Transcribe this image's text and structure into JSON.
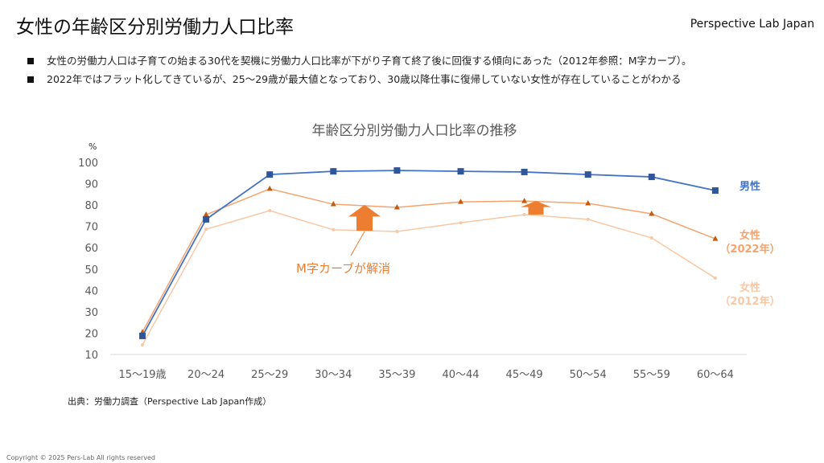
{
  "header": {
    "title": "女性の年齢区分別労働力人口比率",
    "brand": "Perspective Lab Japan"
  },
  "bullets": [
    "女性の労働力人口は子育ての始まる30代を契機に労働力人口比率が下がり子育て終了後に回復する傾向にあった（2012年参照：M字カーブ）。",
    "2022年ではフラット化してきているが、25～29歳が最大値となっており、30歳以降仕事に復帰していない女性が存在していることがわかる"
  ],
  "source": "出典：労働力調査（Perspective Lab Japan作成）",
  "copyright": "Copyright © 2025 Pers-Lab All rights reserved",
  "chart_data": {
    "type": "line",
    "title": "年齢区分別労働力人口比率の推移",
    "ylabel": "%",
    "ylim": [
      10,
      100
    ],
    "yticks": [
      10,
      20,
      30,
      40,
      50,
      60,
      70,
      80,
      90,
      100
    ],
    "categories": [
      "15～19歳",
      "20～24",
      "25～29",
      "30～34",
      "35～39",
      "40～44",
      "45～49",
      "50～54",
      "55～59",
      "60～64"
    ],
    "series": [
      {
        "name": "男性",
        "label": [
          "男性"
        ],
        "color": "#4472C4",
        "marker": "square",
        "values": [
          18.7,
          73.3,
          94.3,
          95.8,
          96.2,
          95.8,
          95.5,
          94.3,
          93.2,
          86.8
        ]
      },
      {
        "name": "女性（2022年）",
        "label": [
          "女性",
          "（2022年）"
        ],
        "color": "#F4A46E",
        "marker": "triangle",
        "values": [
          20.5,
          75.5,
          87.6,
          80.4,
          78.9,
          81.5,
          81.9,
          80.8,
          75.9,
          64.2
        ]
      },
      {
        "name": "女性（2012年）",
        "label": [
          "女性",
          "（2012年）"
        ],
        "color": "#F8C8A6",
        "marker": "diamond",
        "values": [
          14.5,
          68.7,
          77.4,
          68.4,
          67.6,
          71.7,
          75.5,
          73.3,
          64.6,
          45.8
        ]
      }
    ],
    "annotation": "M字カーブが解消",
    "accent": "#ED7D31"
  }
}
